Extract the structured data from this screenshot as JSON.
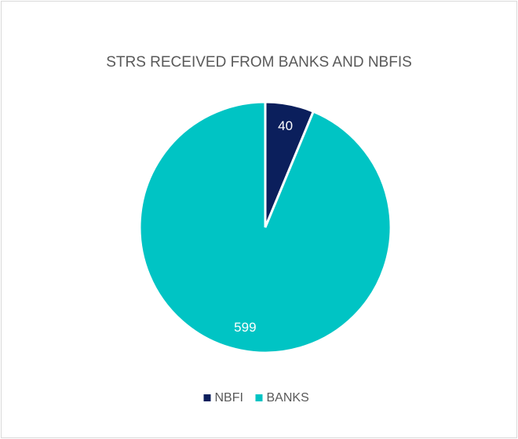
{
  "chart_data": {
    "type": "pie",
    "title": "STRS RECEIVED FROM BANKS AND NBFIS",
    "categories": [
      "NBFI",
      "BANKS"
    ],
    "values": [
      40,
      599
    ],
    "colors": [
      "#0b1f5c",
      "#00c4c4"
    ],
    "legend": "bottom"
  }
}
